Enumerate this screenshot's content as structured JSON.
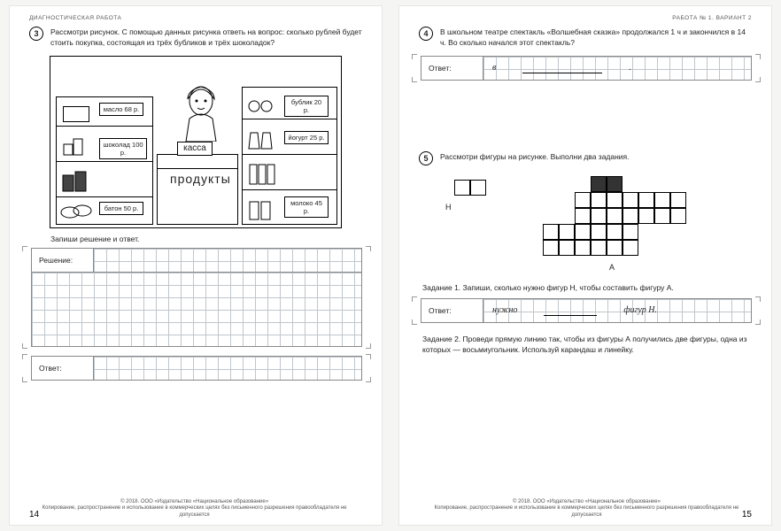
{
  "left": {
    "header": "ДИАГНОСТИЧЕСКАЯ РАБОТА",
    "q3_num": "3",
    "q3_text": "Рассмотри рисунок. С помощью данных рисунка ответь на вопрос: сколько рублей будет стоить покупка, состоящая из трёх бубликов и трёх шоколадок?",
    "shop": {
      "maslo": "масло 68 р.",
      "shokolad": "шоколад 100 р.",
      "baton": "батон 50 р.",
      "bublik": "бублик 20 р.",
      "yogurt": "йогурт 25 р.",
      "moloko": "молоко 45 р.",
      "kassa": "касса",
      "produkty": "продукты"
    },
    "solve_label": "Запиши решение и ответ.",
    "reshenie": "Решение:",
    "otvet": "Ответ:",
    "page": "14"
  },
  "right": {
    "header": "РАБОТА № 1. ВАРИАНТ 2",
    "q4_num": "4",
    "q4_text": "В школьном театре спектакль «Волшебная сказка» продолжался 1 ч и закончился в 14 ч. Во сколько начался этот спектакль?",
    "ans4_lbl": "Ответ:",
    "ans4_a": "в",
    "ans4_b": ".",
    "q5_num": "5",
    "q5_text": "Рассмотри фигуры на рисунке. Выполни два задания.",
    "H": "Н",
    "A": "А",
    "t1": "Задание 1. Запиши, сколько нужно фигур Н, чтобы составить фигуру А.",
    "ans5_lbl": "Ответ:",
    "ans5_a": "нужно",
    "ans5_b": "фигур Н.",
    "t2": "Задание 2. Проведи прямую линию так, чтобы из фигуры А получились две фигуры, одна из которых — восьмиугольник. Используй карандаш и линейку.",
    "page": "15"
  },
  "copyright": "© 2018. ООО «Издательство «Национальное образование»\nКопирование, распространение и использование в коммерческих целях без письменного разрешения правообладателя не допускается",
  "cell": 14
}
